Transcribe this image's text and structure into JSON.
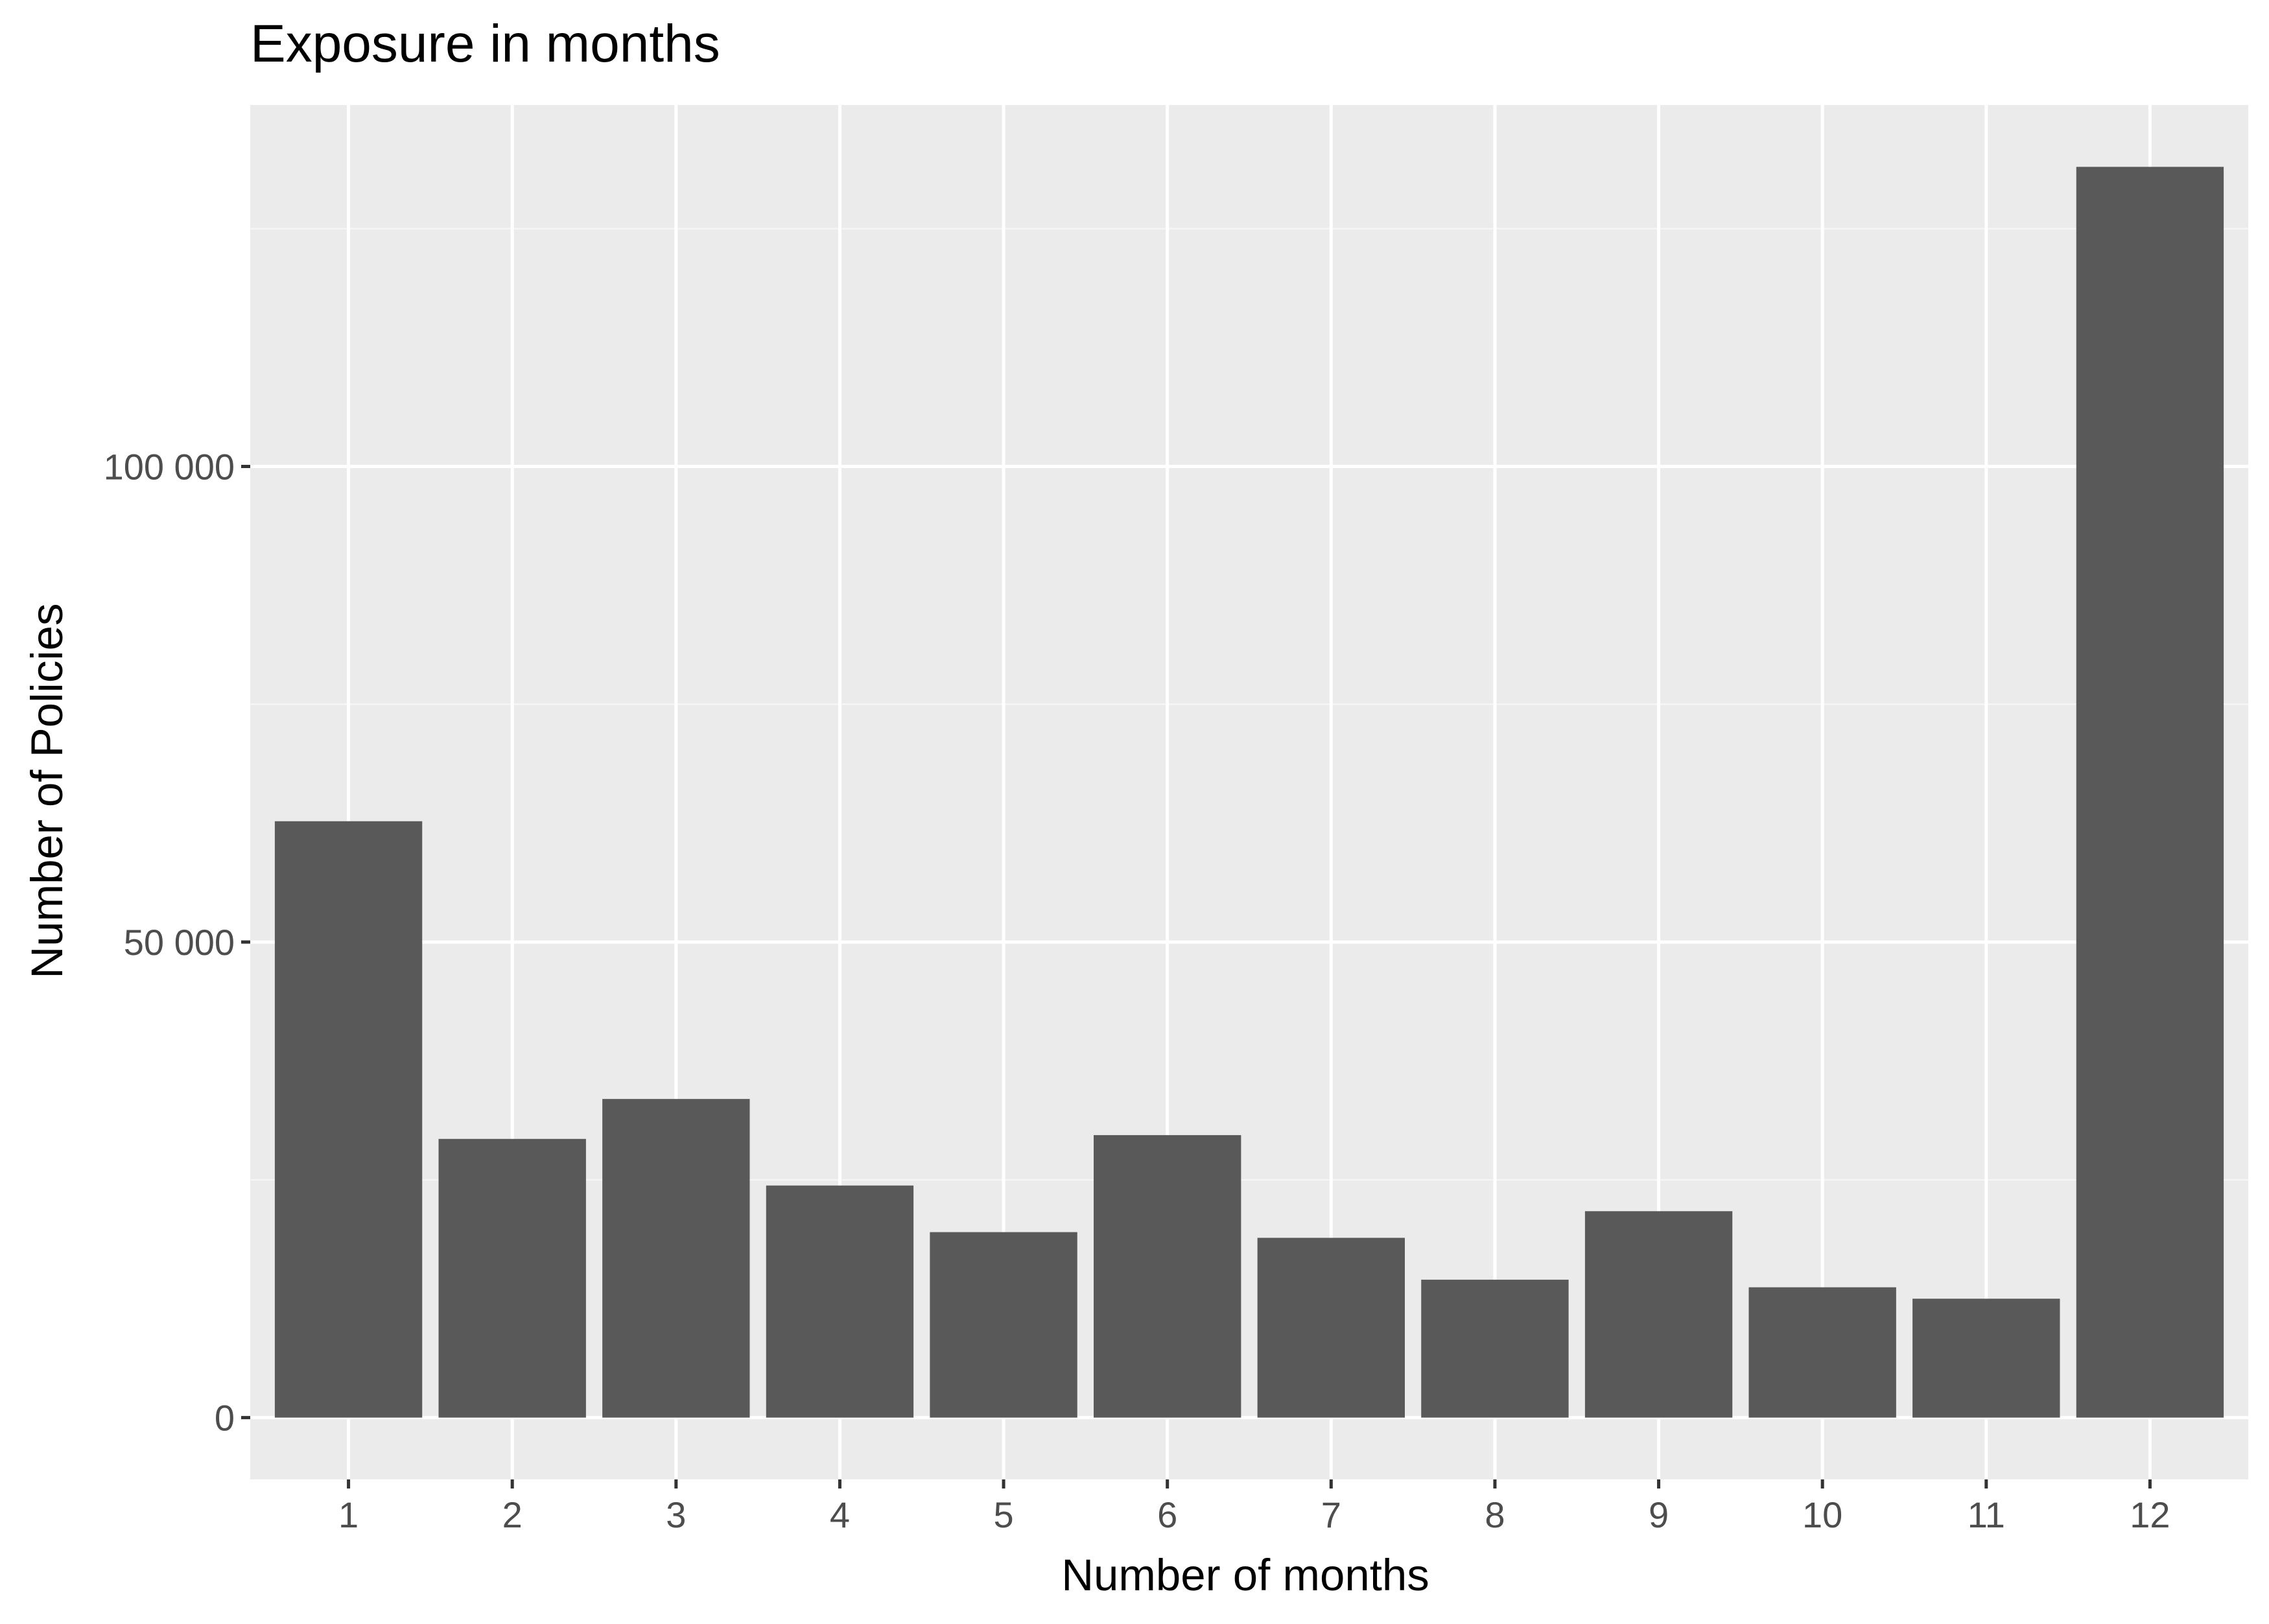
{
  "chart_data": {
    "type": "bar",
    "title": "Exposure in months",
    "xlabel": "Number of months",
    "ylabel": "Number of Policies",
    "categories": [
      "1",
      "2",
      "3",
      "4",
      "5",
      "6",
      "7",
      "8",
      "9",
      "10",
      "11",
      "12"
    ],
    "values": [
      62700,
      29300,
      33500,
      24400,
      19500,
      29700,
      18900,
      14500,
      21700,
      13700,
      12500,
      131500
    ],
    "y_ticks": [
      0,
      50000,
      100000
    ],
    "y_tick_labels": [
      "0",
      "50 000",
      "100 000"
    ],
    "ylim": [
      -6500,
      138000
    ],
    "grid": true,
    "legend": "none",
    "colors": {
      "bar": "#595959",
      "panel": "#ebebeb",
      "grid_major": "#ffffff",
      "grid_minor": "#f5f5f5",
      "tick_label": "#4d4d4d",
      "tick_mark": "#333333",
      "text": "#000000"
    }
  }
}
